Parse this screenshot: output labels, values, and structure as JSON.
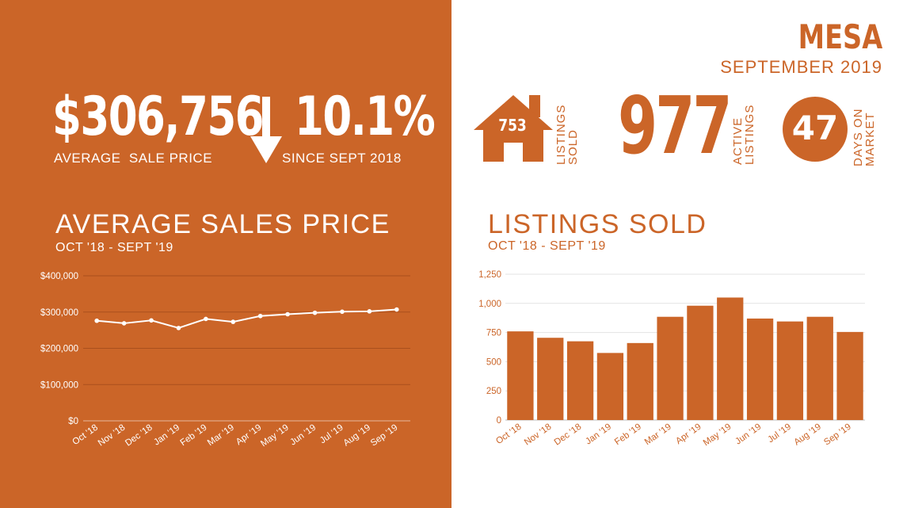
{
  "colors": {
    "orange": "#cb6528",
    "white": "#ffffff"
  },
  "header": {
    "city": "MESA",
    "period": "SEPTEMBER 2019"
  },
  "price_stat": {
    "value": "$306,756",
    "label": "AVERAGE  SALE PRICE"
  },
  "change_stat": {
    "value": "10.1%",
    "direction_icon": "arrow-down-icon",
    "label": "SINCE SEPT 2018"
  },
  "listings_sold_stat": {
    "value": "753",
    "icon": "house-icon",
    "label_line1": "LISTINGS",
    "label_line2": "SOLD"
  },
  "active_listings_stat": {
    "value": "977",
    "label_line1": "ACTIVE",
    "label_line2": "LISTINGS"
  },
  "days_on_market_stat": {
    "value": "47",
    "label_line1": "DAYS ON",
    "label_line2": "MARKET"
  },
  "charts": {
    "price_title": "AVERAGE SALES PRICE",
    "price_subtitle": "OCT '18 - SEPT '19",
    "sold_title": "LISTINGS SOLD",
    "sold_subtitle": "OCT '18 - SEPT '19"
  },
  "chart_data": [
    {
      "type": "line",
      "title": "AVERAGE SALES PRICE",
      "subtitle": "OCT '18 - SEPT '19",
      "categories": [
        "Oct '18",
        "Nov '18",
        "Dec '18",
        "Jan '19",
        "Feb '19",
        "Mar '19",
        "Apr '19",
        "May '19",
        "Jun '19",
        "Jul '19",
        "Aug '19",
        "Sep '19"
      ],
      "values": [
        276000,
        269000,
        277000,
        256000,
        281000,
        273000,
        289000,
        294000,
        298000,
        301000,
        302000,
        307000
      ],
      "ylim": [
        0,
        400000
      ],
      "yticks": [
        "$0",
        "$100,000",
        "$200,000",
        "$300,000",
        "$400,000"
      ],
      "ytick_values": [
        0,
        100000,
        200000,
        300000,
        400000
      ],
      "grid": true
    },
    {
      "type": "bar",
      "title": "LISTINGS SOLD",
      "subtitle": "OCT '18 - SEPT '19",
      "categories": [
        "Oct '18",
        "Nov '18",
        "Dec '18",
        "Jan '19",
        "Feb '19",
        "Mar '19",
        "Apr '19",
        "May '19",
        "Jun '19",
        "Jul '19",
        "Aug '19",
        "Sep '19"
      ],
      "values": [
        760,
        705,
        675,
        575,
        660,
        885,
        980,
        1050,
        870,
        845,
        885,
        755
      ],
      "ylim": [
        0,
        1250
      ],
      "yticks": [
        "0",
        "250",
        "500",
        "750",
        "1,000",
        "1,250"
      ],
      "ytick_values": [
        0,
        250,
        500,
        750,
        1000,
        1250
      ],
      "grid": true
    }
  ]
}
